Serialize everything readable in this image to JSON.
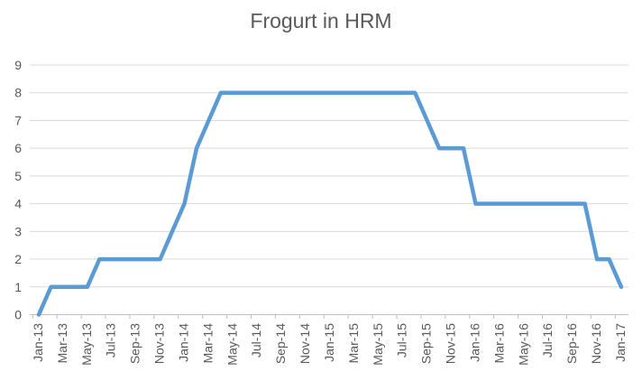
{
  "chart_data": {
    "type": "line",
    "title": "Frogurt in HRM",
    "categories": [
      "Jan-13",
      "Feb-13",
      "Mar-13",
      "Apr-13",
      "May-13",
      "Jun-13",
      "Jul-13",
      "Aug-13",
      "Sep-13",
      "Oct-13",
      "Nov-13",
      "Dec-13",
      "Jan-14",
      "Feb-14",
      "Mar-14",
      "Apr-14",
      "May-14",
      "Jun-14",
      "Jul-14",
      "Aug-14",
      "Sep-14",
      "Oct-14",
      "Nov-14",
      "Dec-14",
      "Jan-15",
      "Feb-15",
      "Mar-15",
      "Apr-15",
      "May-15",
      "Jun-15",
      "Jul-15",
      "Aug-15",
      "Sep-15",
      "Oct-15",
      "Nov-15",
      "Dec-15",
      "Jan-16",
      "Feb-16",
      "Mar-16",
      "Apr-16",
      "May-16",
      "Jun-16",
      "Jul-16",
      "Aug-16",
      "Sep-16",
      "Oct-16",
      "Nov-16",
      "Dec-16",
      "Jan-17"
    ],
    "values": [
      0,
      1,
      1,
      1,
      1,
      2,
      2,
      2,
      2,
      2,
      2,
      3,
      4,
      6,
      7,
      8,
      8,
      8,
      8,
      8,
      8,
      8,
      8,
      8,
      8,
      8,
      8,
      8,
      8,
      8,
      8,
      8,
      7,
      6,
      6,
      6,
      4,
      4,
      4,
      4,
      4,
      4,
      4,
      4,
      4,
      4,
      2,
      2,
      1
    ],
    "xlabel": "",
    "ylabel": "",
    "ylim": [
      0,
      9
    ],
    "yticks": [
      0,
      1,
      2,
      3,
      4,
      5,
      6,
      7,
      8,
      9
    ],
    "xtick_label_every": 2,
    "xtick_labels_shown": [
      "Jan-13",
      "Mar-13",
      "May-13",
      "Jul-13",
      "Sep-13",
      "Nov-13",
      "Jan-14",
      "Mar-14",
      "May-14",
      "Jul-14",
      "Sep-14",
      "Nov-14",
      "Jan-15",
      "Mar-15",
      "May-15",
      "Jul-15",
      "Sep-15",
      "Nov-15",
      "Jan-16",
      "Mar-16",
      "May-16",
      "Jul-16",
      "Sep-16",
      "Nov-16",
      "Jan-17"
    ],
    "grid": "horizontal",
    "legend": "none",
    "colors": {
      "line": "#5B9BD5",
      "gridline": "#D9D9D9",
      "axis": "#BFBFBF",
      "text": "#595959",
      "title_text": "#595959",
      "background": "#FFFFFF"
    }
  }
}
